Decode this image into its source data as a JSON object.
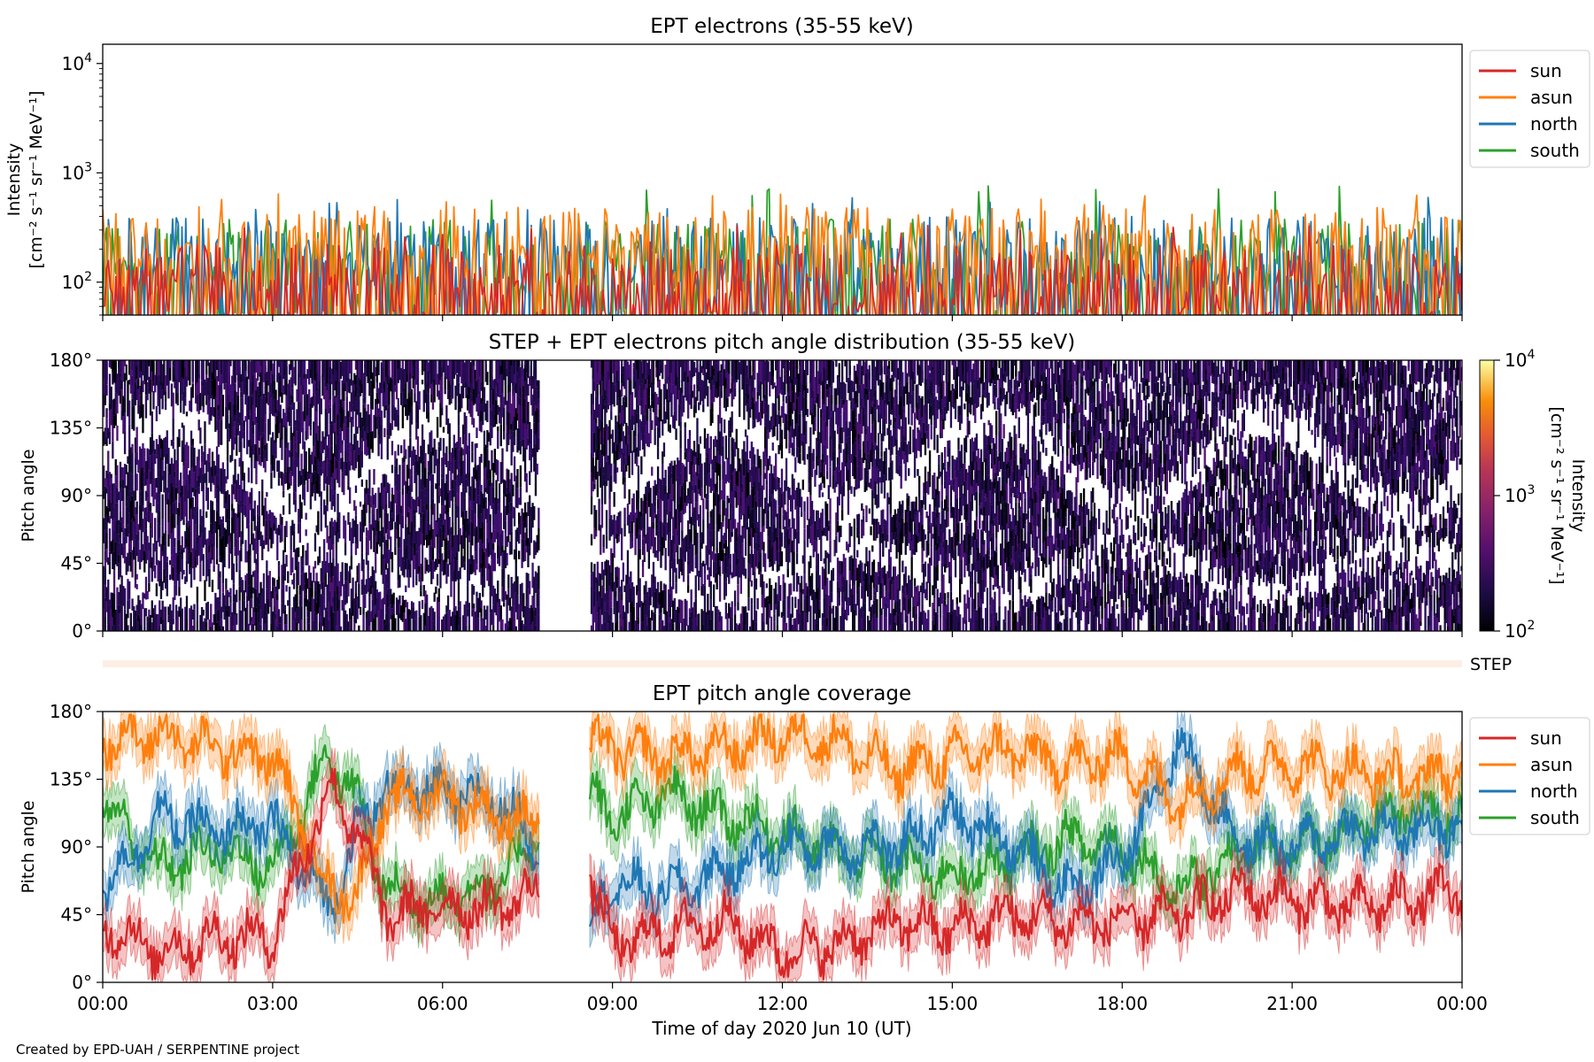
{
  "figure": {
    "footer": "Created by EPD-UAH / SERPENTINE project",
    "xlabel": "Time of day 2020 Jun 10 (UT)",
    "xticks": [
      "00:00",
      "03:00",
      "06:00",
      "09:00",
      "12:00",
      "15:00",
      "18:00",
      "21:00",
      "00:00"
    ]
  },
  "colors": {
    "sun": "#d62728",
    "asun": "#ff7f0e",
    "north": "#1f77b4",
    "south": "#2ca02c"
  },
  "chart_data": [
    {
      "type": "line",
      "title": "EPT electrons (35-55 keV)",
      "ylabel_line1": "Intensity",
      "ylabel_line2": "[cm⁻² s⁻¹ sr⁻¹ MeV⁻¹]",
      "yscale": "log",
      "ylim": [
        50,
        15000
      ],
      "yticks": [
        {
          "value": 100,
          "base": "10",
          "exp": "2"
        },
        {
          "value": 1000,
          "base": "10",
          "exp": "3"
        },
        {
          "value": 10000,
          "base": "10",
          "exp": "4"
        }
      ],
      "xlim_hours": [
        0,
        24
      ],
      "legend": {
        "placement": "outside-right",
        "entries": [
          "sun",
          "asun",
          "north",
          "south"
        ]
      },
      "series": [
        {
          "name": "sun",
          "color": "#d62728",
          "typical": 100,
          "min": 50,
          "max": 330
        },
        {
          "name": "asun",
          "color": "#ff7f0e",
          "typical": 220,
          "min": 50,
          "max": 650
        },
        {
          "name": "north",
          "color": "#1f77b4",
          "typical": 180,
          "min": 50,
          "max": 600
        },
        {
          "name": "south",
          "color": "#2ca02c",
          "typical": 170,
          "min": 50,
          "max": 800
        }
      ]
    },
    {
      "type": "heatmap",
      "title": "STEP + EPT electrons pitch angle distribution (35-55 keV)",
      "ylabel": "Pitch angle",
      "ylim": [
        0,
        180
      ],
      "yticks": [
        "0°",
        "45°",
        "90°",
        "135°",
        "180°"
      ],
      "colorbar": {
        "scale": "log",
        "range": [
          100,
          10000
        ],
        "label_line1": "Intensity",
        "label_line2": "[cm⁻² s⁻¹ sr⁻¹ MeV⁻¹]",
        "ticks": [
          {
            "base": "10",
            "exp": "2"
          },
          {
            "base": "10",
            "exp": "3"
          },
          {
            "base": "10",
            "exp": "4"
          }
        ],
        "colormap": "inferno"
      },
      "data_gap_hours": [
        7.7,
        8.6
      ],
      "step_strip_label": "STEP"
    },
    {
      "type": "line",
      "title": "EPT pitch angle coverage",
      "ylabel": "Pitch angle",
      "ylim": [
        0,
        180
      ],
      "yticks": [
        "0°",
        "45°",
        "90°",
        "135°",
        "180°"
      ],
      "xlim_hours": [
        0,
        24
      ],
      "data_gap_hours": [
        7.7,
        8.6
      ],
      "legend": {
        "placement": "outside-right",
        "entries": [
          "sun",
          "asun",
          "north",
          "south"
        ]
      },
      "series": [
        {
          "name": "sun",
          "color": "#d62728",
          "x": [
            0,
            1,
            2,
            3,
            4,
            4.5,
            5,
            6,
            7,
            7.6,
            8.6,
            9,
            10,
            11,
            12,
            13,
            14,
            15,
            16,
            17,
            18,
            19,
            20,
            21,
            22,
            23,
            24
          ],
          "y": [
            40,
            20,
            30,
            30,
            130,
            100,
            45,
            50,
            50,
            60,
            70,
            25,
            35,
            40,
            20,
            25,
            40,
            35,
            45,
            40,
            40,
            45,
            60,
            55,
            50,
            55,
            60
          ]
        },
        {
          "name": "asun",
          "color": "#ff7f0e",
          "x": [
            0,
            1,
            2,
            3,
            4,
            4.5,
            5,
            6,
            7,
            7.6,
            8.6,
            9,
            10,
            11,
            12,
            13,
            14,
            15,
            16,
            17,
            18,
            19,
            20,
            21,
            22,
            23,
            24
          ],
          "y": [
            160,
            165,
            155,
            150,
            60,
            60,
            120,
            125,
            110,
            105,
            160,
            155,
            150,
            155,
            165,
            160,
            140,
            150,
            155,
            145,
            150,
            120,
            140,
            145,
            140,
            135,
            140
          ]
        },
        {
          "name": "north",
          "color": "#1f77b4",
          "x": [
            0,
            1,
            2,
            3,
            4,
            4.5,
            5,
            6,
            7,
            7.6,
            8.6,
            9,
            10,
            11,
            12,
            13,
            14,
            15,
            16,
            17,
            18,
            19,
            20,
            21,
            22,
            23,
            24
          ],
          "y": [
            60,
            110,
            100,
            105,
            50,
            100,
            130,
            125,
            120,
            95,
            40,
            65,
            60,
            75,
            90,
            90,
            90,
            110,
            95,
            60,
            80,
            160,
            95,
            90,
            100,
            100,
            105
          ]
        },
        {
          "name": "south",
          "color": "#2ca02c",
          "x": [
            0,
            1,
            2,
            3,
            4,
            4.5,
            5,
            6,
            7,
            7.6,
            8.6,
            9,
            10,
            11,
            12,
            13,
            14,
            15,
            16,
            17,
            18,
            19,
            20,
            21,
            22,
            23,
            24
          ],
          "y": [
            120,
            75,
            90,
            75,
            150,
            120,
            60,
            55,
            65,
            95,
            125,
            110,
            125,
            110,
            100,
            85,
            80,
            70,
            80,
            95,
            90,
            60,
            85,
            90,
            100,
            115,
            110
          ]
        }
      ]
    }
  ]
}
